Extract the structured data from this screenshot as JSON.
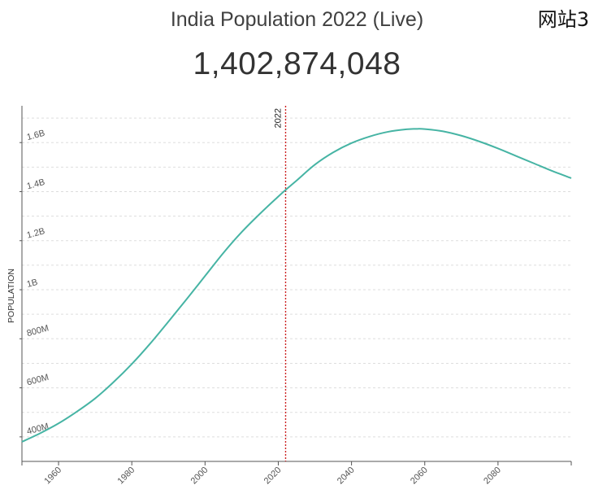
{
  "header": {
    "title": "India Population 2022 (Live)",
    "site_tag": "网站3",
    "live_count": "1,402,874,048"
  },
  "colors": {
    "line": "#46b4a4",
    "marker": "#cc2222",
    "grid": "#dddddd",
    "axis": "#555555"
  },
  "chart_data": {
    "type": "line",
    "title": "India Population 2022 (Live)",
    "xlabel": "",
    "ylabel": "POPULATION",
    "xlim": [
      1950,
      2100
    ],
    "ylim": [
      300000000,
      1750000000
    ],
    "x_ticks": [
      1960,
      1980,
      2000,
      2020,
      2040,
      2060,
      2080
    ],
    "x_tick_labels": [
      "1960",
      "1980",
      "2000",
      "2020",
      "2040",
      "2060",
      "2080"
    ],
    "y_ticks": [
      400000000,
      600000000,
      800000000,
      1000000000,
      1200000000,
      1400000000,
      1600000000
    ],
    "y_tick_labels": [
      "400M",
      "600M",
      "800M",
      "1B",
      "1.2B",
      "1.4B",
      "1.6B"
    ],
    "grid": true,
    "marker": {
      "x": 2022,
      "label": "2022"
    },
    "series": [
      {
        "name": "Population",
        "x": [
          1950,
          1955,
          1960,
          1965,
          1970,
          1975,
          1980,
          1985,
          1990,
          1995,
          2000,
          2005,
          2010,
          2015,
          2020,
          2022,
          2025,
          2030,
          2035,
          2040,
          2045,
          2050,
          2055,
          2058,
          2060,
          2065,
          2070,
          2075,
          2080,
          2085,
          2090,
          2095,
          2100
        ],
        "values": [
          380000000,
          415000000,
          455000000,
          503000000,
          557000000,
          623000000,
          697000000,
          780000000,
          870000000,
          962000000,
          1056000000,
          1150000000,
          1235000000,
          1310000000,
          1380000000,
          1407000000,
          1445000000,
          1510000000,
          1560000000,
          1598000000,
          1625000000,
          1644000000,
          1654000000,
          1656000000,
          1655000000,
          1646000000,
          1628000000,
          1604000000,
          1576000000,
          1545000000,
          1514000000,
          1483000000,
          1455000000
        ]
      }
    ]
  }
}
